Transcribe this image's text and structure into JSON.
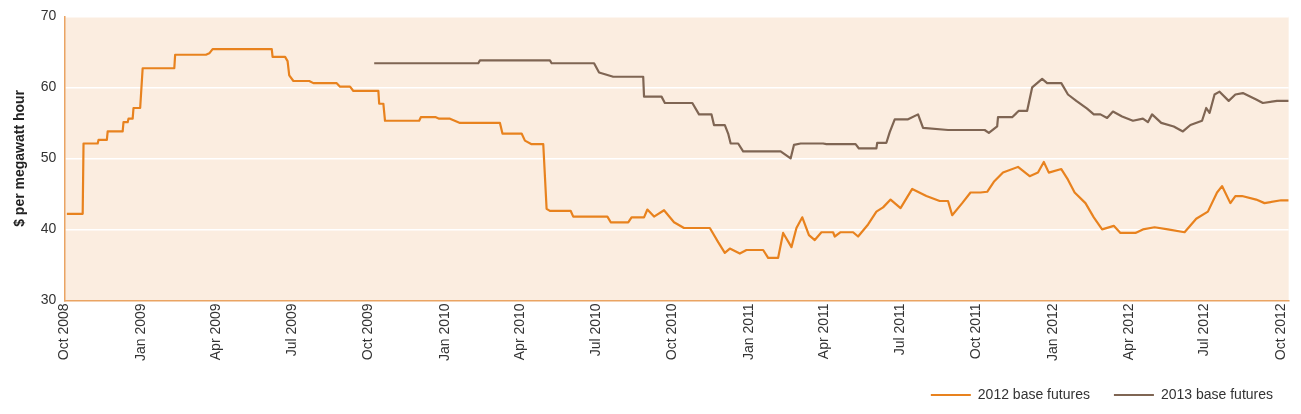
{
  "chart_data": {
    "type": "line",
    "ylabel": "$ per megawatt hour",
    "ylim": [
      30,
      70
    ],
    "yticks": [
      30,
      40,
      50,
      60,
      70
    ],
    "xlim": [
      "2008-10-01",
      "2012-10-10"
    ],
    "xticks": [
      {
        "value": "2008-10-01",
        "label": "Oct 2008"
      },
      {
        "value": "2009-01-01",
        "label": "Jan 2009"
      },
      {
        "value": "2009-04-01",
        "label": "Apr 2009"
      },
      {
        "value": "2009-07-01",
        "label": "Jul 2009"
      },
      {
        "value": "2009-10-01",
        "label": "Oct 2009"
      },
      {
        "value": "2010-01-01",
        "label": "Jan 2010"
      },
      {
        "value": "2010-04-01",
        "label": "Apr 2010"
      },
      {
        "value": "2010-07-01",
        "label": "Jul 2010"
      },
      {
        "value": "2010-10-01",
        "label": "Oct 2010"
      },
      {
        "value": "2011-01-01",
        "label": "Jan 2011"
      },
      {
        "value": "2011-04-01",
        "label": "Apr 2011"
      },
      {
        "value": "2011-07-01",
        "label": "Jul 2011"
      },
      {
        "value": "2011-10-01",
        "label": "Oct 2011"
      },
      {
        "value": "2012-01-01",
        "label": "Jan 2012"
      },
      {
        "value": "2012-04-01",
        "label": "Apr 2012"
      },
      {
        "value": "2012-07-01",
        "label": "Jul 2012"
      },
      {
        "value": "2012-10-01",
        "label": "Oct 2012"
      }
    ],
    "grid": "y",
    "legend": "bottom right",
    "marker": "none",
    "line_style": "solid",
    "series": [
      {
        "name": "2012 base futures",
        "color": "#e8821e",
        "x": [
          "2008-10-04",
          "2008-10-23",
          "2008-10-24",
          "2008-11-10",
          "2008-11-11",
          "2008-11-21",
          "2008-11-22",
          "2008-12-10",
          "2008-12-11",
          "2008-12-16",
          "2008-12-17",
          "2008-12-22",
          "2008-12-23",
          "2008-12-31",
          "2009-01-03",
          "2009-02-10",
          "2009-02-11",
          "2009-03-20",
          "2009-03-24",
          "2009-03-28",
          "2009-06-07",
          "2009-06-08",
          "2009-06-23",
          "2009-06-26",
          "2009-06-28",
          "2009-07-03",
          "2009-07-22",
          "2009-07-27",
          "2009-08-24",
          "2009-08-28",
          "2009-09-09",
          "2009-09-13",
          "2009-10-13",
          "2009-10-14",
          "2009-10-19",
          "2009-10-21",
          "2009-12-01",
          "2009-12-03",
          "2009-12-21",
          "2009-12-25",
          "2010-01-07",
          "2010-01-19",
          "2010-03-08",
          "2010-03-11",
          "2010-04-03",
          "2010-04-07",
          "2010-04-15",
          "2010-04-29",
          "2010-05-03",
          "2010-05-07",
          "2010-06-01",
          "2010-06-04",
          "2010-07-15",
          "2010-07-19",
          "2010-08-09",
          "2010-08-13",
          "2010-08-28",
          "2010-09-01",
          "2010-09-09",
          "2010-09-21",
          "2010-10-03",
          "2010-10-15",
          "2010-11-15",
          "2010-11-25",
          "2010-12-03",
          "2010-12-09",
          "2010-12-21",
          "2010-12-29",
          "2011-01-18",
          "2011-01-24",
          "2011-02-05",
          "2011-02-11",
          "2011-02-21",
          "2011-02-27",
          "2011-03-06",
          "2011-03-14",
          "2011-03-21",
          "2011-03-29",
          "2011-04-12",
          "2011-04-14",
          "2011-04-21",
          "2011-05-06",
          "2011-05-12",
          "2011-05-24",
          "2011-06-03",
          "2011-06-11",
          "2011-06-20",
          "2011-07-02",
          "2011-07-16",
          "2011-08-02",
          "2011-08-18",
          "2011-08-28",
          "2011-09-02",
          "2011-09-14",
          "2011-09-24",
          "2011-10-06",
          "2011-10-14",
          "2011-10-22",
          "2011-11-02",
          "2011-11-20",
          "2011-12-04",
          "2011-12-14",
          "2011-12-21",
          "2011-12-27",
          "2012-01-11",
          "2012-01-19",
          "2012-01-27",
          "2012-02-09",
          "2012-02-19",
          "2012-02-29",
          "2012-03-14",
          "2012-03-22",
          "2012-04-09",
          "2012-04-18",
          "2012-05-02",
          "2012-05-18",
          "2012-06-07",
          "2012-06-21",
          "2012-07-05",
          "2012-07-16",
          "2012-07-22",
          "2012-08-01",
          "2012-08-07",
          "2012-08-15",
          "2012-09-01",
          "2012-09-11",
          "2012-10-01",
          "2012-10-10"
        ],
        "values": [
          42.2,
          42.2,
          52.1,
          52.1,
          52.6,
          52.6,
          53.8,
          53.8,
          55.1,
          55.1,
          55.6,
          55.6,
          57.1,
          57.1,
          62.7,
          62.7,
          64.6,
          64.6,
          64.8,
          65.4,
          65.4,
          64.3,
          64.3,
          63.7,
          61.7,
          60.9,
          60.9,
          60.6,
          60.6,
          60.1,
          60.1,
          59.5,
          59.5,
          57.7,
          57.7,
          55.3,
          55.3,
          55.8,
          55.8,
          55.6,
          55.6,
          55.0,
          55.0,
          53.5,
          53.5,
          52.5,
          52.0,
          52.0,
          42.9,
          42.6,
          42.6,
          41.8,
          41.8,
          41.0,
          41.0,
          41.7,
          41.7,
          42.8,
          41.8,
          42.7,
          41.0,
          40.2,
          40.2,
          38.2,
          36.7,
          37.3,
          36.6,
          37.1,
          37.1,
          36.0,
          36.0,
          39.5,
          37.5,
          40.2,
          41.7,
          39.2,
          38.5,
          39.6,
          39.6,
          39.0,
          39.6,
          39.6,
          39.0,
          40.7,
          42.5,
          43.1,
          44.2,
          43.0,
          45.7,
          44.7,
          44.0,
          44.0,
          42.0,
          43.7,
          45.2,
          45.2,
          45.3,
          46.7,
          48.0,
          48.8,
          47.5,
          48.0,
          49.5,
          48.0,
          48.5,
          47.0,
          45.2,
          43.7,
          41.7,
          40.0,
          40.5,
          39.5,
          39.5,
          40.0,
          40.3,
          40.0,
          39.6,
          41.5,
          42.5,
          45.2,
          46.1,
          43.7,
          44.7,
          44.7,
          44.2,
          43.7,
          44.1,
          44.1
        ]
      },
      {
        "name": "2013 base futures",
        "color": "#7f6553",
        "x": [
          "2009-10-08",
          "2010-02-10",
          "2010-02-12",
          "2010-05-07",
          "2010-05-09",
          "2010-06-29",
          "2010-07-05",
          "2010-07-22",
          "2010-08-27",
          "2010-08-28",
          "2010-09-18",
          "2010-09-22",
          "2010-10-25",
          "2010-11-02",
          "2010-11-17",
          "2010-11-20",
          "2010-12-03",
          "2010-12-07",
          "2010-12-10",
          "2010-12-19",
          "2010-12-25",
          "2011-02-08",
          "2011-02-20",
          "2011-02-24",
          "2011-03-04",
          "2011-03-31",
          "2011-04-04",
          "2011-05-09",
          "2011-05-13",
          "2011-06-03",
          "2011-06-04",
          "2011-06-15",
          "2011-06-19",
          "2011-06-25",
          "2011-07-11",
          "2011-07-23",
          "2011-07-29",
          "2011-08-28",
          "2011-10-11",
          "2011-10-16",
          "2011-10-26",
          "2011-10-27",
          "2011-11-13",
          "2011-11-21",
          "2011-12-01",
          "2011-12-07",
          "2011-12-19",
          "2011-12-25",
          "2012-01-11",
          "2012-01-19",
          "2012-01-29",
          "2012-02-11",
          "2012-02-19",
          "2012-02-27",
          "2012-03-06",
          "2012-03-13",
          "2012-03-24",
          "2012-04-06",
          "2012-04-18",
          "2012-04-24",
          "2012-04-29",
          "2012-05-10",
          "2012-05-25",
          "2012-06-05",
          "2012-06-14",
          "2012-06-28",
          "2012-07-03",
          "2012-07-07",
          "2012-07-13",
          "2012-07-19",
          "2012-07-30",
          "2012-08-07",
          "2012-08-16",
          "2012-09-01",
          "2012-09-09",
          "2012-09-26",
          "2012-10-10"
        ],
        "values": [
          63.4,
          63.4,
          63.8,
          63.8,
          63.4,
          63.4,
          62.1,
          61.5,
          61.5,
          58.7,
          58.7,
          57.8,
          57.8,
          56.2,
          56.2,
          54.7,
          54.7,
          53.5,
          52.1,
          52.1,
          51.0,
          51.0,
          50.0,
          51.9,
          52.1,
          52.1,
          52.0,
          52.0,
          51.4,
          51.4,
          52.2,
          52.2,
          53.7,
          55.5,
          55.5,
          56.2,
          54.3,
          54.0,
          54.0,
          53.6,
          54.5,
          55.8,
          55.8,
          56.7,
          56.7,
          60.0,
          61.2,
          60.6,
          60.6,
          59.0,
          58.1,
          57.0,
          56.2,
          56.2,
          55.7,
          56.6,
          55.9,
          55.3,
          55.6,
          55.1,
          56.2,
          55.0,
          54.5,
          53.8,
          54.7,
          55.3,
          57.1,
          56.4,
          59.0,
          59.4,
          58.1,
          59.0,
          59.2,
          58.3,
          57.8,
          58.1,
          58.1
        ]
      }
    ]
  }
}
